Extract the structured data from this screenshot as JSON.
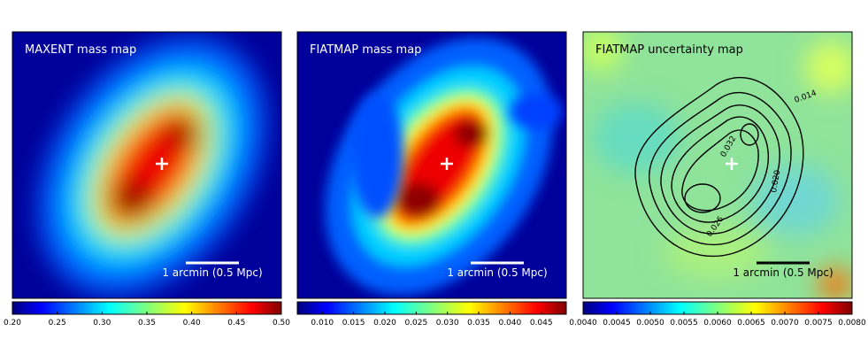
{
  "panels": [
    {
      "title": "MAXENT mass map",
      "scale_bar": "1 arcmin (0.5 Mpc)",
      "colorbar": {
        "range": [
          0.2,
          0.5
        ],
        "ticks": [
          {
            "value": 0.2,
            "label": "0.20"
          },
          {
            "value": 0.25,
            "label": "0.25"
          },
          {
            "value": 0.3,
            "label": "0.30"
          },
          {
            "value": 0.35,
            "label": "0.35"
          },
          {
            "value": 0.4,
            "label": "0.40"
          },
          {
            "value": 0.45,
            "label": "0.45"
          },
          {
            "value": 0.5,
            "label": "0.50"
          }
        ]
      }
    },
    {
      "title": "FIATMAP mass map",
      "scale_bar": "1 arcmin (0.5 Mpc)",
      "colorbar": {
        "range": [
          0.006,
          0.049
        ],
        "ticks": [
          {
            "value": 0.01,
            "label": "0.010"
          },
          {
            "value": 0.015,
            "label": "0.015"
          },
          {
            "value": 0.02,
            "label": "0.020"
          },
          {
            "value": 0.025,
            "label": "0.025"
          },
          {
            "value": 0.03,
            "label": "0.030"
          },
          {
            "value": 0.035,
            "label": "0.035"
          },
          {
            "value": 0.04,
            "label": "0.040"
          },
          {
            "value": 0.045,
            "label": "0.045"
          }
        ]
      }
    },
    {
      "title": "FIATMAP uncertainty map",
      "scale_bar": "1 arcmin (0.5 Mpc)",
      "contour_labels": [
        "0.014",
        "0.032",
        "0.020",
        "0.026"
      ],
      "colorbar": {
        "range": [
          0.004,
          0.008
        ],
        "ticks": [
          {
            "value": 0.004,
            "label": "0.0040"
          },
          {
            "value": 0.0045,
            "label": "0.0045"
          },
          {
            "value": 0.005,
            "label": "0.0050"
          },
          {
            "value": 0.0055,
            "label": "0.0055"
          },
          {
            "value": 0.006,
            "label": "0.0060"
          },
          {
            "value": 0.0065,
            "label": "0.0065"
          },
          {
            "value": 0.007,
            "label": "0.0070"
          },
          {
            "value": 0.0075,
            "label": "0.0075"
          },
          {
            "value": 0.008,
            "label": "0.0080"
          }
        ]
      }
    }
  ]
}
